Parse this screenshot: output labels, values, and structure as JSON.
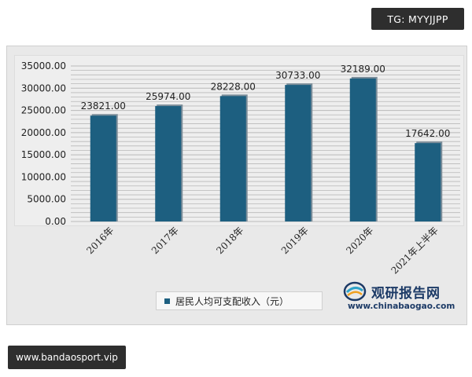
{
  "watermark_tag": "TG: MYYJJPP",
  "footer_site": "www.bandaosport.vip",
  "brand": {
    "name": "观研报告网",
    "url": "www.chinabaogao.com"
  },
  "colors": {
    "bar": "#1d5f80",
    "bar_shadow": "#7d8e9a",
    "grid": "#b9b9b9",
    "axis_text": "#222222"
  },
  "chart_data": {
    "type": "bar",
    "categories": [
      "2016年",
      "2017年",
      "2018年",
      "2019年",
      "2020年",
      "2021年上半年"
    ],
    "series": [
      {
        "name": "居民人均可支配收入（元）",
        "values": [
          23821.0,
          25974.0,
          28228.0,
          30733.0,
          32189.0,
          17642.0
        ]
      }
    ],
    "data_labels": [
      "23821.00",
      "25974.00",
      "28228.00",
      "30733.00",
      "32189.00",
      "17642.00"
    ],
    "y_ticks": [
      "0.00",
      "5000.00",
      "10000.00",
      "15000.00",
      "20000.00",
      "25000.00",
      "30000.00",
      "35000.00"
    ],
    "ylim": [
      0,
      35000
    ],
    "legend": "居民人均可支配收入（元）",
    "legend_position": "bottom",
    "grid": true,
    "title": "",
    "xlabel": "",
    "ylabel": ""
  }
}
